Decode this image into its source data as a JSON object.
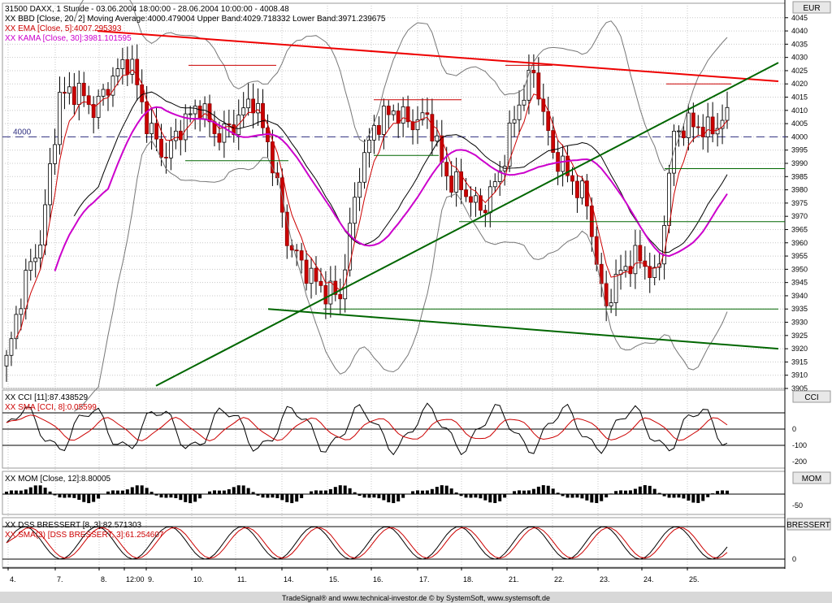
{
  "header": {
    "title": "31500 DAXX, 1 Stunde - 03.06.2004 18:00:00 - 28.06.2004 10:00:00 - 4008.48",
    "bbd": "XX BBD [Close, 20, 2] Moving Average:4000.479004 Upper Band:4029.718332 Lower Band:3971.239675",
    "ema": "XX EMA [Close, 5]:4007.295393",
    "kama": "XX KAMA [Close, 30]:3981.101595",
    "currency": "EUR",
    "level_marker": "4000"
  },
  "panels": {
    "cci": {
      "legend1": "XX CCI [11]:87.438529",
      "legend2": "XX SMA [CCI, 8]:0.05599",
      "name": "CCI",
      "ticks": [
        "0",
        "-100",
        "-200"
      ]
    },
    "mom": {
      "legend1": "XX MOM [Close, 12]:8.80005",
      "name": "MOM",
      "ticks": [
        "-50"
      ]
    },
    "dss": {
      "legend1": "XX DSS BRESSERT [8, 3]:82.571303",
      "legend2": "XX SMA(3) [DSS BRESSERT, 3]:61.254607",
      "name": "BRESSERT",
      "ticks": [
        "0"
      ]
    }
  },
  "footer": "TradeSignal® and www.technical-investor.de © by SystemSoft, www.systemsoft.de",
  "colors": {
    "candle_up": "#ffffff",
    "candle_down": "#cc0000",
    "band": "#777777",
    "ema": "#cc0000",
    "kama": "#cc00cc",
    "trend_red": "#ee0000",
    "trend_green": "#006600",
    "grid": "#c8c8c8"
  },
  "chart_data": {
    "type": "candlestick",
    "x_ticks": [
      "4.",
      "7.",
      "8.",
      "12:00",
      "9.",
      "10.",
      "11.",
      "14.",
      "15.",
      "16.",
      "17.",
      "18.",
      "21.",
      "22.",
      "23.",
      "24.",
      "25."
    ],
    "y_ticks": [
      "3905",
      "3910",
      "3915",
      "3920",
      "3925",
      "3930",
      "3935",
      "3940",
      "3945",
      "3950",
      "3955",
      "3960",
      "3965",
      "3970",
      "3975",
      "3980",
      "3985",
      "3990",
      "3995",
      "4000",
      "4005",
      "4010",
      "4015",
      "4020",
      "4025",
      "4030",
      "4035",
      "4040",
      "4045"
    ],
    "ylim": [
      3905,
      4048
    ],
    "horizontal_levels": [
      4000
    ],
    "series": [
      {
        "name": "DAXX",
        "approx_close_path": [
          3915,
          3945,
          3962,
          4015,
          4018,
          4010,
          4022,
          4030,
          4005,
          3992,
          4005,
          4012,
          4000,
          4005,
          4015,
          3995,
          3960,
          3950,
          3942,
          3940,
          3985,
          4005,
          4010,
          4005,
          4008,
          3985,
          3980,
          3972,
          3985,
          4010,
          4025,
          3995,
          3985,
          3976,
          3935,
          3950,
          3955,
          3945,
          4002,
          4005,
          4002,
          4008
        ]
      }
    ]
  }
}
